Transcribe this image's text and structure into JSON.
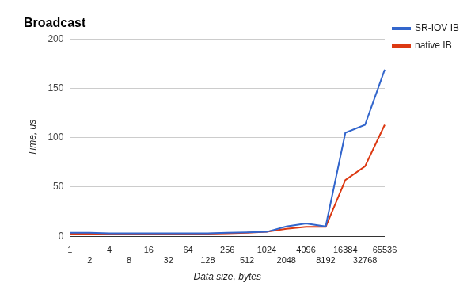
{
  "chart_data": {
    "type": "line",
    "title": "Broadcast",
    "x_label": "Data size, bytes",
    "y_label": "Time, us",
    "categories": [
      "1",
      "2",
      "4",
      "8",
      "16",
      "32",
      "64",
      "128",
      "256",
      "512",
      "1024",
      "2048",
      "4096",
      "8192",
      "16384",
      "32768",
      "65536"
    ],
    "series": [
      {
        "name": "SR-IOV IB",
        "color": "#3366cc",
        "values": [
          3.5,
          3.5,
          3,
          3,
          3,
          3,
          3,
          3,
          3.5,
          4,
          4.5,
          10,
          13,
          10,
          105,
          113,
          169
        ]
      },
      {
        "name": "native IB",
        "color": "#dc3912",
        "values": [
          2.5,
          2.5,
          2.5,
          2.5,
          2.5,
          2.5,
          2.5,
          2.5,
          3,
          3.5,
          4.5,
          7.5,
          9.5,
          9.5,
          57,
          71,
          113
        ]
      }
    ],
    "ylim": [
      0,
      200
    ],
    "yticks": [
      0,
      50,
      100,
      150,
      200
    ],
    "grid": true,
    "legend": "right"
  }
}
